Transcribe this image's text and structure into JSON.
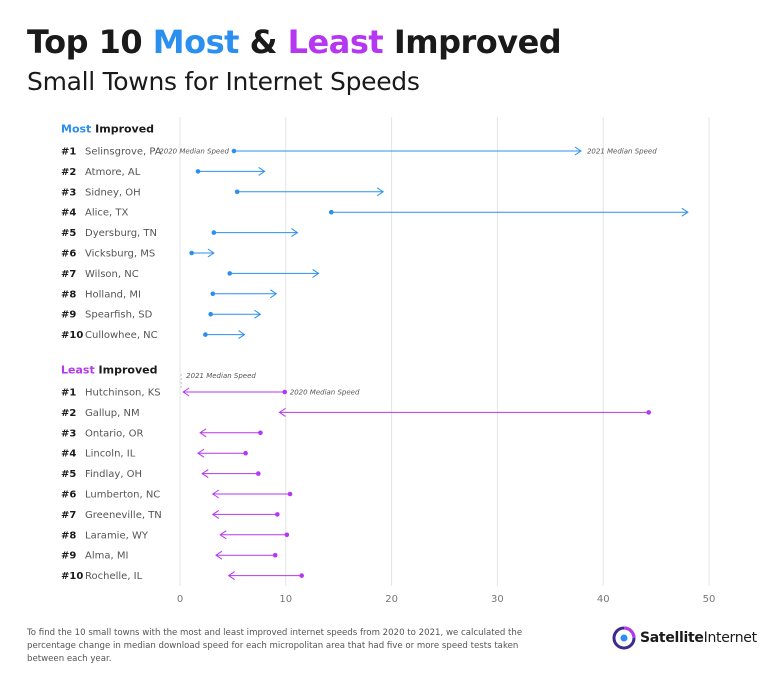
{
  "header": {
    "title_prefix": "Top 10",
    "title_most": "Most",
    "title_amp": "&",
    "title_least": "Least",
    "title_suffix": "Improved",
    "subtitle": "Small Towns for Internet Speeds"
  },
  "colors": {
    "most": "#2b8ff0",
    "least": "#b537f2",
    "label": "#555555",
    "grid": "#e4e4e4"
  },
  "chart_data": {
    "type": "dumbbell",
    "xlim": [
      0,
      50
    ],
    "xticks": [
      0,
      10,
      20,
      30,
      40,
      50
    ],
    "grid": true,
    "groups": [
      {
        "key": "most",
        "title_colored": "Most",
        "title_rest": "Improved",
        "start_label": "2020 Median Speed",
        "end_label": "2021 Median Speed",
        "items": [
          {
            "rank": "#1",
            "name": "Selinsgrove, PA",
            "speed_2020": 5.1,
            "speed_2021": 37.9
          },
          {
            "rank": "#2",
            "name": "Atmore, AL",
            "speed_2020": 1.7,
            "speed_2021": 8.0
          },
          {
            "rank": "#3",
            "name": "Sidney, OH",
            "speed_2020": 5.4,
            "speed_2021": 19.2
          },
          {
            "rank": "#4",
            "name": "Alice, TX",
            "speed_2020": 14.3,
            "speed_2021": 48.0
          },
          {
            "rank": "#5",
            "name": "Dyersburg, TN",
            "speed_2020": 3.2,
            "speed_2021": 11.1
          },
          {
            "rank": "#6",
            "name": "Vicksburg, MS",
            "speed_2020": 1.1,
            "speed_2021": 3.2
          },
          {
            "rank": "#7",
            "name": "Wilson, NC",
            "speed_2020": 4.7,
            "speed_2021": 13.1
          },
          {
            "rank": "#8",
            "name": "Holland, MI",
            "speed_2020": 3.1,
            "speed_2021": 9.1
          },
          {
            "rank": "#9",
            "name": "Spearfish, SD",
            "speed_2020": 2.9,
            "speed_2021": 7.6
          },
          {
            "rank": "#10",
            "name": "Cullowhee, NC",
            "speed_2020": 2.4,
            "speed_2021": 6.1
          }
        ]
      },
      {
        "key": "least",
        "title_colored": "Least",
        "title_rest": "Improved",
        "start_label": "2020 Median Speed",
        "end_label": "2021 Median Speed",
        "items": [
          {
            "rank": "#1",
            "name": "Hutchinson, KS",
            "speed_2020": 9.9,
            "speed_2021": 0.3
          },
          {
            "rank": "#2",
            "name": "Gallup, NM",
            "speed_2020": 44.3,
            "speed_2021": 9.4
          },
          {
            "rank": "#3",
            "name": "Ontario, OR",
            "speed_2020": 7.6,
            "speed_2021": 1.9
          },
          {
            "rank": "#4",
            "name": "Lincoln, IL",
            "speed_2020": 6.2,
            "speed_2021": 1.7
          },
          {
            "rank": "#5",
            "name": "Findlay, OH",
            "speed_2020": 7.4,
            "speed_2021": 2.1
          },
          {
            "rank": "#6",
            "name": "Lumberton, NC",
            "speed_2020": 10.4,
            "speed_2021": 3.1
          },
          {
            "rank": "#7",
            "name": "Greeneville, TN",
            "speed_2020": 9.2,
            "speed_2021": 3.1
          },
          {
            "rank": "#8",
            "name": "Laramie, WY",
            "speed_2020": 10.1,
            "speed_2021": 3.8
          },
          {
            "rank": "#9",
            "name": "Alma, MI",
            "speed_2020": 9.0,
            "speed_2021": 3.4
          },
          {
            "rank": "#10",
            "name": "Rochelle, IL",
            "speed_2020": 11.5,
            "speed_2021": 4.6
          }
        ]
      }
    ]
  },
  "footnote": "To find the 10 small towns with the most and least improved internet speeds from 2020 to 2021, we calculated the percentage change in median download speed for each micropolitan area that had five or more speed tests taken between each year.",
  "logo": {
    "text_bold": "Satellite",
    "text_rest": "Internet"
  }
}
